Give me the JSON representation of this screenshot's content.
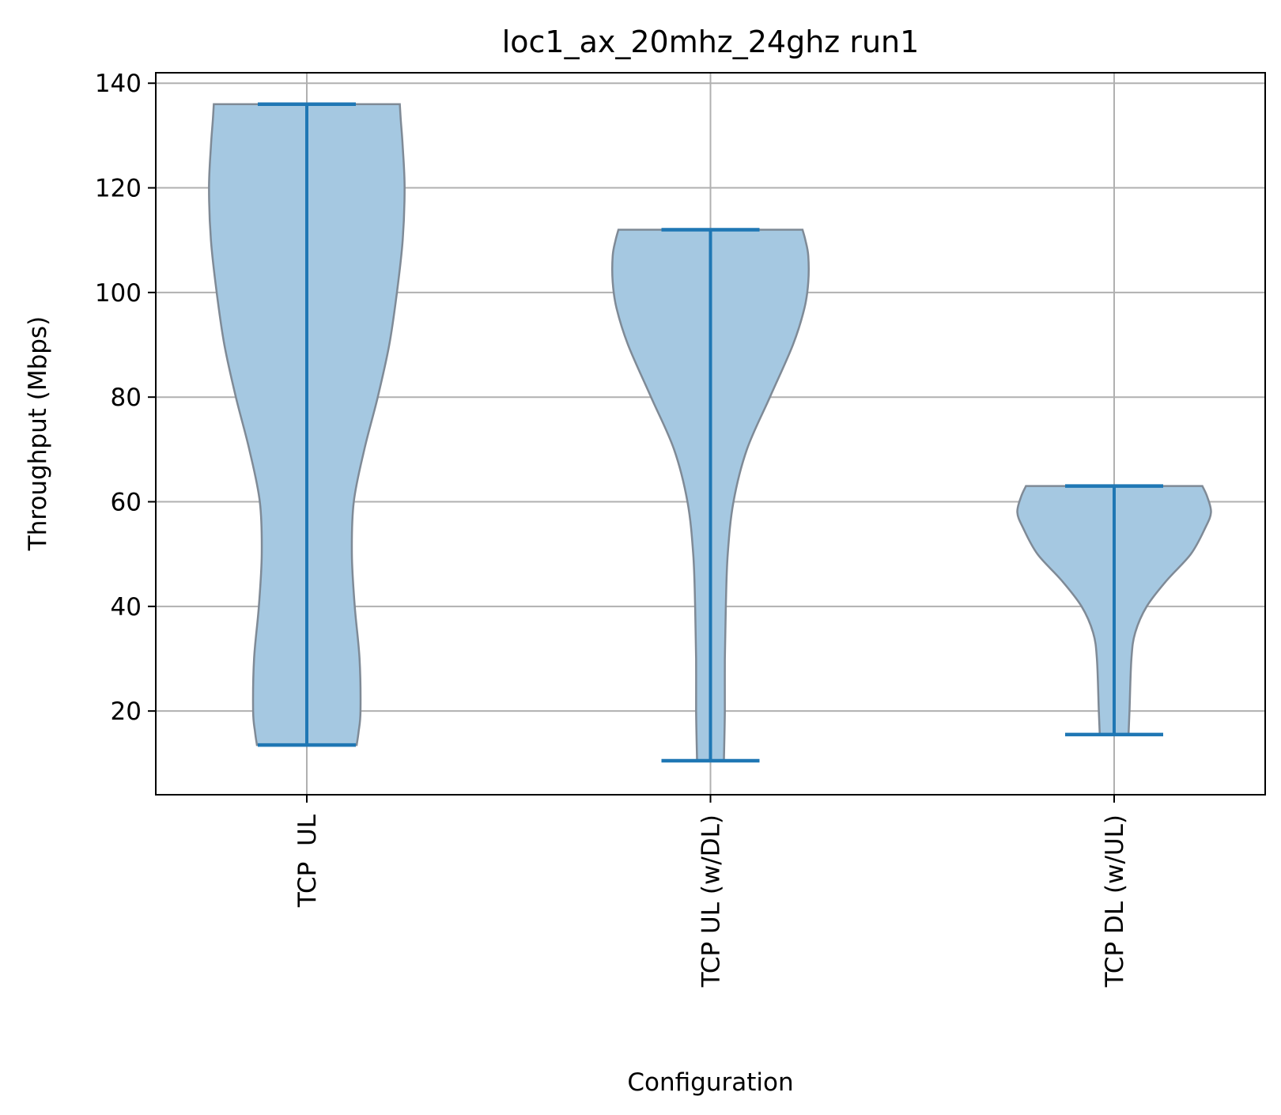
{
  "chart_data": {
    "type": "violin",
    "title": "loc1_ax_20mhz_24ghz run1",
    "xlabel": "Configuration",
    "ylabel": "Throughput (Mbps)",
    "ylim": [
      4,
      142
    ],
    "yticks": [
      20,
      40,
      60,
      80,
      100,
      120,
      140
    ],
    "grid": true,
    "colors": {
      "fill": "#a5c8e1",
      "edge": "#7f8a96",
      "whisker": "#1f77b4",
      "grid": "#b0b0b0"
    },
    "categories": [
      "TCP  UL",
      "TCP UL (w/DL)",
      "TCP DL (w/UL)"
    ],
    "series": [
      {
        "min": 13.5,
        "max": 136,
        "density": [
          {
            "y": 13.5,
            "w": 0.52
          },
          {
            "y": 16,
            "w": 0.54
          },
          {
            "y": 20,
            "w": 0.56
          },
          {
            "y": 30,
            "w": 0.55
          },
          {
            "y": 40,
            "w": 0.5
          },
          {
            "y": 50,
            "w": 0.47
          },
          {
            "y": 60,
            "w": 0.49
          },
          {
            "y": 70,
            "w": 0.6
          },
          {
            "y": 80,
            "w": 0.74
          },
          {
            "y": 90,
            "w": 0.86
          },
          {
            "y": 100,
            "w": 0.94
          },
          {
            "y": 110,
            "w": 1.0
          },
          {
            "y": 120,
            "w": 1.02
          },
          {
            "y": 128,
            "w": 1.0
          },
          {
            "y": 133,
            "w": 0.98
          },
          {
            "y": 136,
            "w": 0.97
          }
        ]
      },
      {
        "min": 10.5,
        "max": 112,
        "density": [
          {
            "y": 10.5,
            "w": 0.14
          },
          {
            "y": 20,
            "w": 0.15
          },
          {
            "y": 30,
            "w": 0.15
          },
          {
            "y": 40,
            "w": 0.16
          },
          {
            "y": 50,
            "w": 0.18
          },
          {
            "y": 60,
            "w": 0.24
          },
          {
            "y": 70,
            "w": 0.38
          },
          {
            "y": 80,
            "w": 0.62
          },
          {
            "y": 90,
            "w": 0.86
          },
          {
            "y": 97,
            "w": 0.98
          },
          {
            "y": 102,
            "w": 1.02
          },
          {
            "y": 107,
            "w": 1.02
          },
          {
            "y": 110,
            "w": 0.99
          },
          {
            "y": 112,
            "w": 0.96
          }
        ]
      },
      {
        "min": 15.5,
        "max": 63,
        "density": [
          {
            "y": 15.5,
            "w": 0.15
          },
          {
            "y": 20,
            "w": 0.16
          },
          {
            "y": 30,
            "w": 0.18
          },
          {
            "y": 35,
            "w": 0.22
          },
          {
            "y": 40,
            "w": 0.34
          },
          {
            "y": 45,
            "w": 0.55
          },
          {
            "y": 50,
            "w": 0.8
          },
          {
            "y": 55,
            "w": 0.95
          },
          {
            "y": 58,
            "w": 1.01
          },
          {
            "y": 61,
            "w": 0.97
          },
          {
            "y": 63,
            "w": 0.92
          }
        ]
      }
    ]
  }
}
